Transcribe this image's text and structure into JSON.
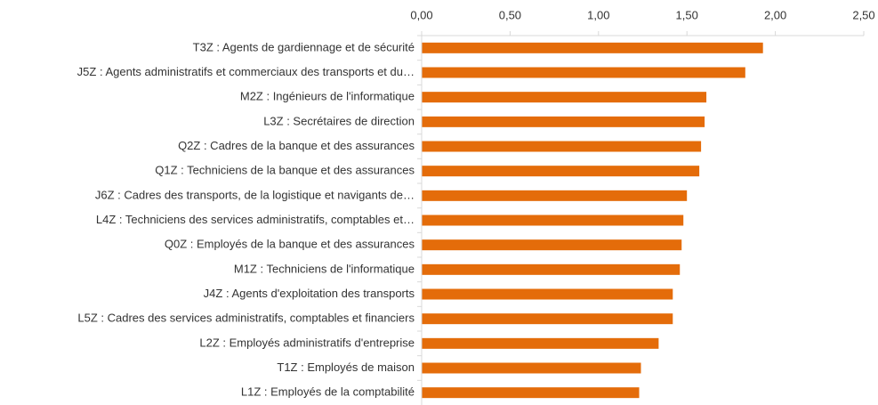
{
  "chart_data": {
    "type": "barh",
    "categories": [
      "T3Z : Agents de gardiennage et de sécurité",
      "J5Z : Agents administratifs et commerciaux des transports et du…",
      "M2Z : Ingénieurs de l'informatique",
      "L3Z : Secrétaires de direction",
      "Q2Z : Cadres de la banque et des assurances",
      "Q1Z : Techniciens de la banque et des assurances",
      "J6Z : Cadres des transports, de la logistique et navigants de…",
      "L4Z : Techniciens des services administratifs, comptables et…",
      "Q0Z : Employés de la banque et des assurances",
      "M1Z : Techniciens de l'informatique",
      "J4Z : Agents d'exploitation des transports",
      "L5Z : Cadres des services administratifs, comptables et financiers",
      "L2Z : Employés administratifs d'entreprise",
      "T1Z : Employés de maison",
      "L1Z : Employés de la comptabilité"
    ],
    "values": [
      1.93,
      1.83,
      1.61,
      1.6,
      1.58,
      1.57,
      1.5,
      1.48,
      1.47,
      1.46,
      1.42,
      1.42,
      1.34,
      1.24,
      1.23
    ],
    "color": "#e46c0a",
    "xlim": [
      0,
      2.5
    ],
    "xticks": [
      {
        "value": 0,
        "label": "0,00"
      },
      {
        "value": 0.5,
        "label": "0,50"
      },
      {
        "value": 1,
        "label": "1,00"
      },
      {
        "value": 1.5,
        "label": "1,50"
      },
      {
        "value": 2,
        "label": "2,00"
      },
      {
        "value": 2.5,
        "label": "2,50"
      }
    ],
    "grid": false
  }
}
